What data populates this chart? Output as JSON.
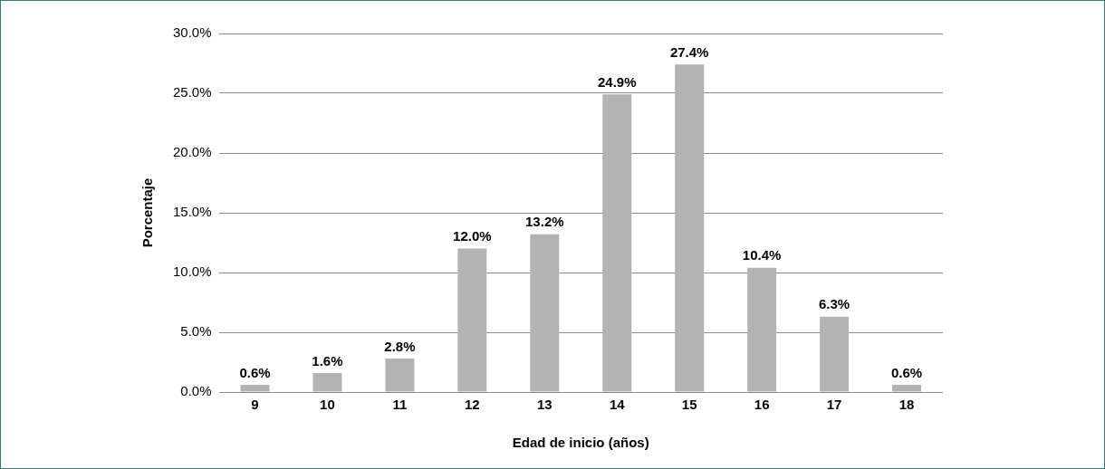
{
  "chart_data": {
    "type": "bar",
    "xlabel": "Edad de inicio (años)",
    "ylabel": "Porcentaje",
    "categories": [
      "9",
      "10",
      "11",
      "12",
      "13",
      "14",
      "15",
      "16",
      "17",
      "18"
    ],
    "values": [
      0.6,
      1.6,
      2.8,
      12.0,
      13.2,
      24.9,
      27.4,
      10.4,
      6.3,
      0.6
    ],
    "value_labels": [
      "0.6%",
      "1.6%",
      "2.8%",
      "12.0%",
      "13.2%",
      "24.9%",
      "27.4%",
      "10.4%",
      "6.3%",
      "0.6%"
    ],
    "color": "#b3b3b3",
    "ylim": [
      0,
      30
    ],
    "yticks": [
      {
        "value": 0,
        "label": "0.0%"
      },
      {
        "value": 5,
        "label": "5.0%"
      },
      {
        "value": 10,
        "label": "10.0%"
      },
      {
        "value": 15,
        "label": "15.0%"
      },
      {
        "value": 20,
        "label": "20.0%"
      },
      {
        "value": 25,
        "label": "25.0%"
      },
      {
        "value": 30,
        "label": "30.0%"
      }
    ],
    "grid": "y",
    "legend": false
  }
}
